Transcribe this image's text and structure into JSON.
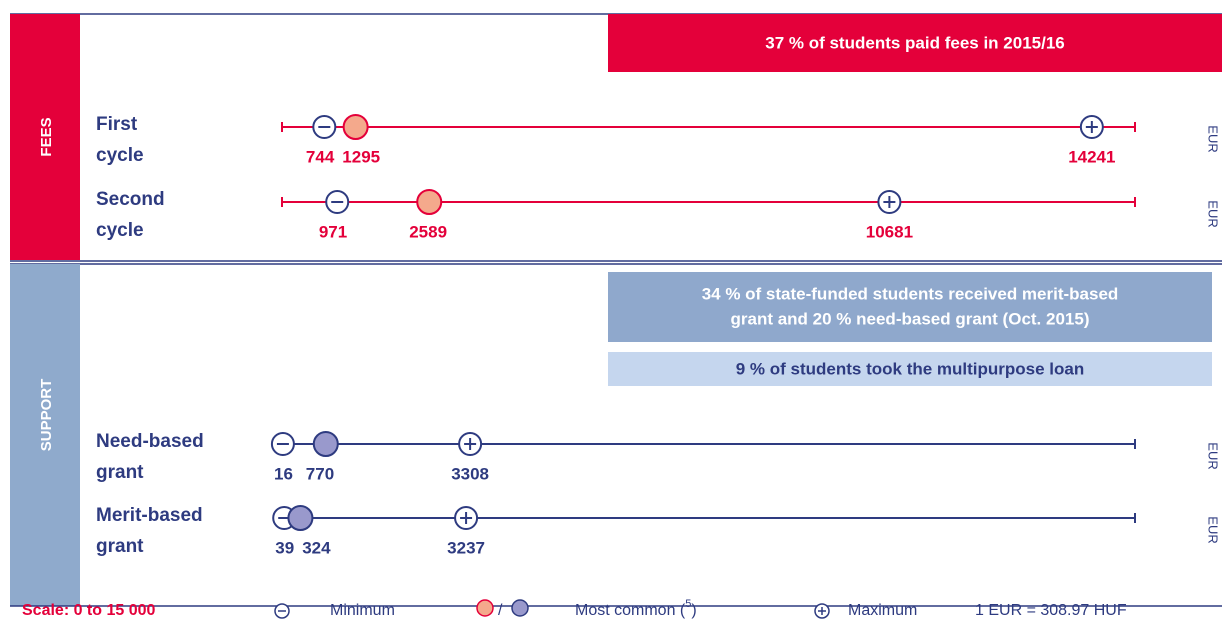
{
  "fees": {
    "label": "FEES",
    "banner": "37 % of students paid fees in 2015/16",
    "rows": [
      {
        "label": [
          "First",
          "cycle"
        ],
        "min": 744,
        "common": 1295,
        "max": 14241,
        "unit": "EUR"
      },
      {
        "label": [
          "Second",
          "cycle"
        ],
        "min": 971,
        "common": 2589,
        "max": 10681,
        "unit": "EUR"
      }
    ]
  },
  "support": {
    "label": "SUPPORT",
    "banners": [
      [
        "34 % of state-funded students received merit-based",
        "grant and 20 % need-based grant (Oct. 2015)"
      ],
      [
        "9 % of students took the multipurpose loan"
      ]
    ],
    "rows": [
      {
        "label": [
          "Need-based",
          "grant"
        ],
        "min": 16,
        "common": 770,
        "max": 3308,
        "unit": "EUR"
      },
      {
        "label": [
          "Merit-based",
          "grant"
        ],
        "min": 39,
        "common": 324,
        "max": 3237,
        "unit": "EUR"
      }
    ]
  },
  "scale": {
    "label": "Scale: 0 to 15 000",
    "min": 0,
    "max": 15000
  },
  "legend": {
    "minimum": "Minimum",
    "slash": "/",
    "common": "Most common (",
    "common_note": "5",
    "common_close": ")",
    "maximum": "Maximum",
    "rate": "1 EUR = 308.97 HUF"
  }
}
